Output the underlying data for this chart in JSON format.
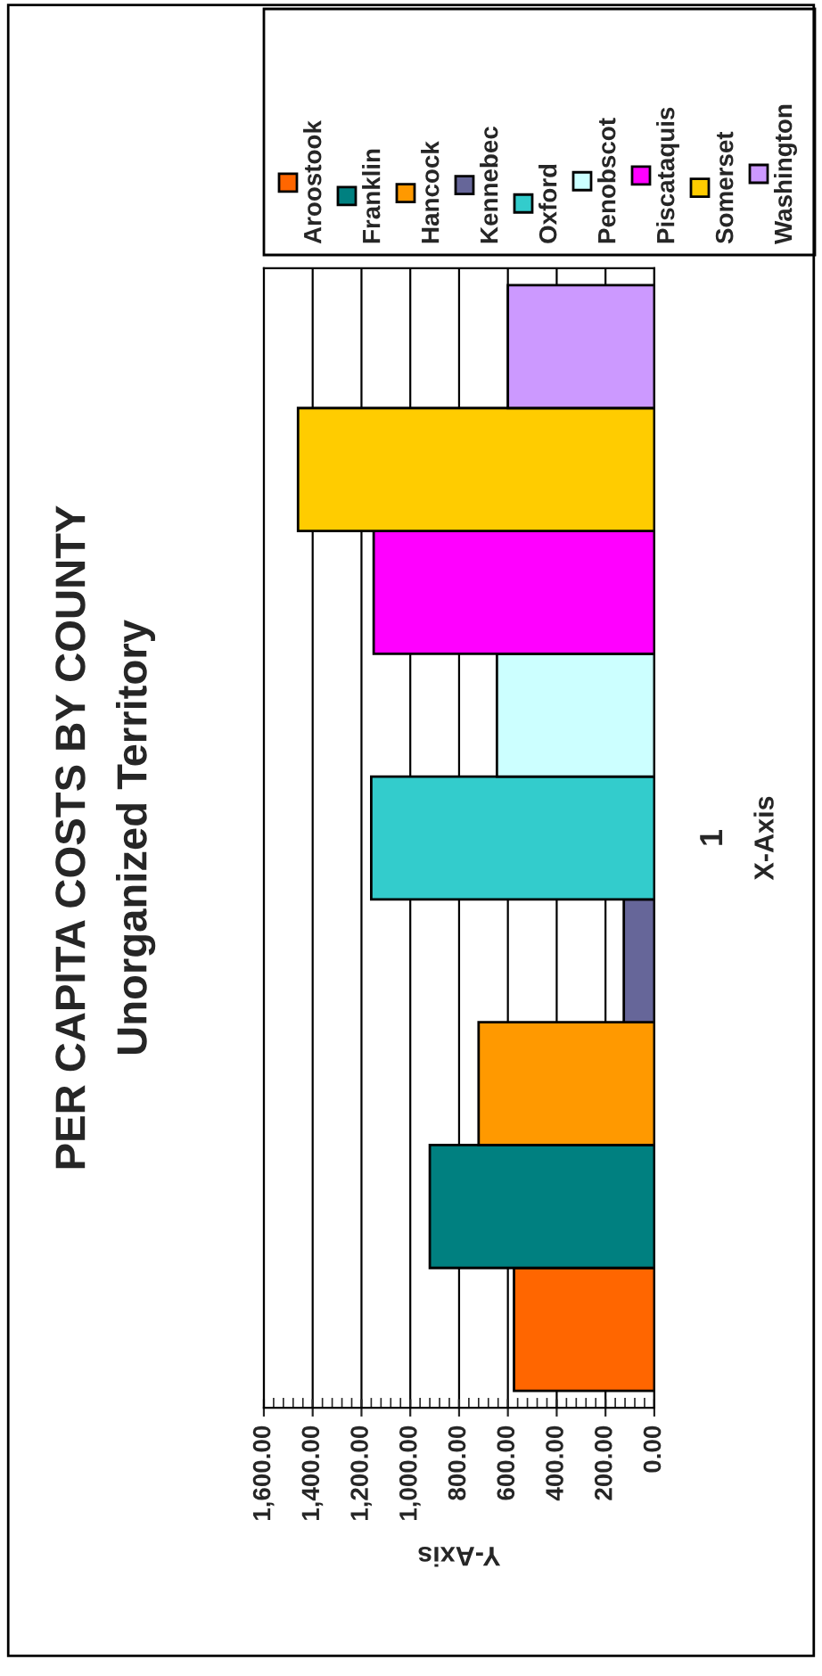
{
  "chart_data": {
    "type": "bar",
    "orientation": "horizontal",
    "title": "PER CAPITA COSTS BY COUNTY",
    "subtitle": "Unorganized Territory",
    "xlabel": "Y-Axis",
    "ylabel": "X-Axis",
    "categories": [
      "1"
    ],
    "series": [
      {
        "name": "Aroostook",
        "color": "#ff6600",
        "values": [
          575
        ]
      },
      {
        "name": "Franklin",
        "color": "#008080",
        "values": [
          920
        ]
      },
      {
        "name": "Hancock",
        "color": "#ff9900",
        "values": [
          720
        ]
      },
      {
        "name": "Kennebec",
        "color": "#666699",
        "values": [
          125
        ]
      },
      {
        "name": "Oxford",
        "color": "#33cccc",
        "values": [
          1160
        ]
      },
      {
        "name": "Penobscot",
        "color": "#ccffff",
        "values": [
          645
        ]
      },
      {
        "name": "Piscataquis",
        "color": "#ff00ff",
        "values": [
          1150
        ]
      },
      {
        "name": "Somerset",
        "color": "#ffcc00",
        "values": [
          1460
        ]
      },
      {
        "name": "Washington",
        "color": "#cc99ff",
        "values": [
          600
        ]
      }
    ],
    "xlim": [
      1600,
      0
    ],
    "xticks": [
      {
        "value": 1600,
        "label": "1,600.00"
      },
      {
        "value": 1400,
        "label": "1,400.00"
      },
      {
        "value": 1200,
        "label": "1,200.00"
      },
      {
        "value": 1000,
        "label": "1,000.00"
      },
      {
        "value": 800,
        "label": "800.00"
      },
      {
        "value": 600,
        "label": "600.00"
      },
      {
        "value": 400,
        "label": "400.00"
      },
      {
        "value": 200,
        "label": "200.00"
      },
      {
        "value": 0,
        "label": "0.00"
      }
    ],
    "grid": "x",
    "legend": "top right"
  }
}
